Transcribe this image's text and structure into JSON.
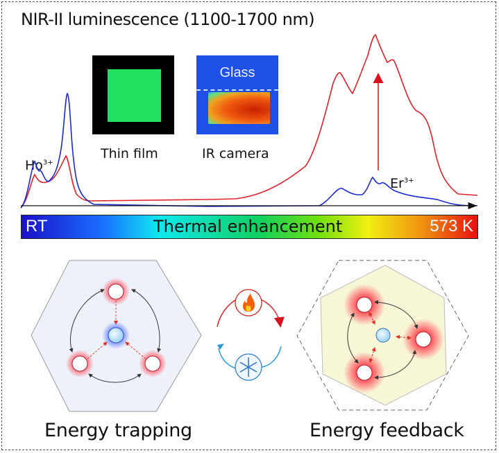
{
  "title": "NIR-II luminescence (1100-1700 nm)",
  "insets": {
    "thin_film_label": "Thin film",
    "ir_camera_label": "IR camera",
    "glass_label": "Glass"
  },
  "spectrum": {
    "ho_label": "Ho",
    "ho_sup": "3+",
    "er_label": "Er",
    "er_sup": "3+",
    "series_colors": {
      "room_temperature": "#1a2ad0",
      "high_temperature": "#e0202a"
    }
  },
  "colorbar": {
    "left_label": "RT",
    "center_label": "Thermal enhancement",
    "right_label": "573 K"
  },
  "mechanisms": {
    "left_caption": "Energy trapping",
    "right_caption": "Energy feedback",
    "heat_icon": "flame-icon",
    "cool_icon": "snowflake-icon"
  }
}
